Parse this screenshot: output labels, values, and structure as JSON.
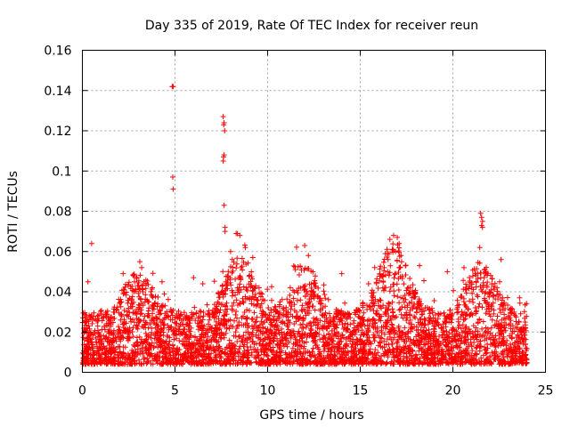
{
  "chart_data": {
    "type": "scatter",
    "title": "Day 335 of 2019, Rate Of TEC Index for receiver reun",
    "xlabel": "GPS time / hours",
    "ylabel": "ROTI / TECUs",
    "xlim": [
      0,
      25
    ],
    "ylim": [
      0,
      0.16
    ],
    "xticks": [
      0,
      5,
      10,
      15,
      20,
      25
    ],
    "xtick_labels": [
      "0",
      "5",
      "10",
      "15",
      "20",
      "25"
    ],
    "yticks": [
      0,
      0.02,
      0.04,
      0.06,
      0.08,
      0.1,
      0.12,
      0.14,
      0.16
    ],
    "ytick_labels": [
      "0",
      "0.02",
      "0.04",
      "0.06",
      "0.08",
      "0.1",
      "0.12",
      "0.14",
      "0.16"
    ],
    "grid": true,
    "marker": "+",
    "color": "#ff0000",
    "series": [
      {
        "name": "ROTI",
        "x": [
          4.85,
          4.9,
          4.88,
          4.9,
          7.6,
          7.65,
          7.63,
          7.68,
          7.65,
          7.62,
          7.6,
          7.65,
          7.7,
          7.7,
          8.3,
          8.5,
          0.5,
          21.5,
          21.55,
          21.6,
          21.55,
          21.6,
          21.45,
          22.6,
          16.6,
          16.8,
          17.0,
          17.1,
          16.9,
          17.2,
          16.5,
          16.3,
          12.0,
          12.2,
          3.1,
          3.2,
          8.0,
          8.8,
          9.2,
          2.2,
          4.3,
          11.5,
          14.0,
          18.2,
          19.7,
          20.6,
          6.0,
          6.5,
          0.3,
          23.6
        ],
        "y": [
          0.142,
          0.142,
          0.097,
          0.091,
          0.127,
          0.124,
          0.123,
          0.12,
          0.108,
          0.107,
          0.105,
          0.083,
          0.072,
          0.07,
          0.069,
          0.068,
          0.064,
          0.079,
          0.077,
          0.075,
          0.073,
          0.072,
          0.062,
          0.056,
          0.066,
          0.068,
          0.067,
          0.064,
          0.06,
          0.058,
          0.056,
          0.052,
          0.063,
          0.058,
          0.055,
          0.052,
          0.06,
          0.062,
          0.057,
          0.049,
          0.045,
          0.051,
          0.049,
          0.053,
          0.05,
          0.052,
          0.047,
          0.044,
          0.045,
          0.037
        ]
      }
    ],
    "dense_band": {
      "x_range": [
        0,
        24
      ],
      "y_min": 0.004,
      "y_typical": [
        0.006,
        0.03
      ],
      "peak_regions": [
        {
          "x": 8.5,
          "y": 0.06
        },
        {
          "x": 16.8,
          "y": 0.065
        },
        {
          "x": 21.5,
          "y": 0.055
        },
        {
          "x": 12.0,
          "y": 0.055
        },
        {
          "x": 3.0,
          "y": 0.05
        }
      ]
    }
  }
}
